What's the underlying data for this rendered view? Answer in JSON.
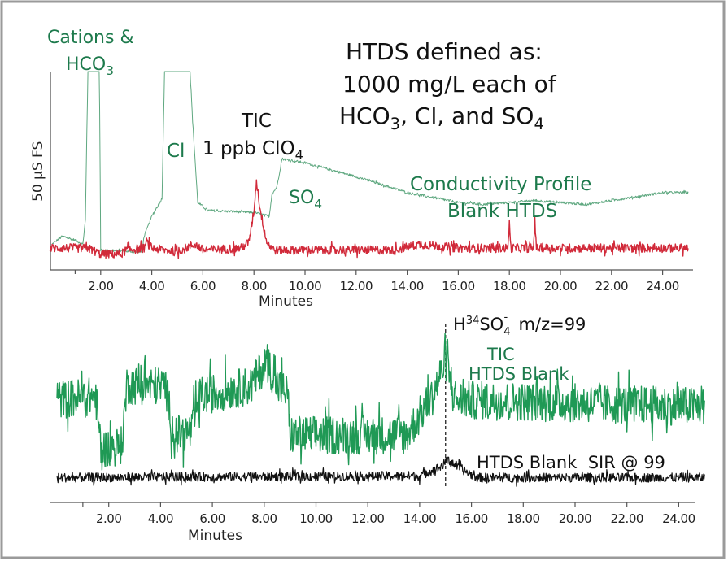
{
  "chart_data": [
    {
      "type": "line",
      "ylabel": "50 µS FS",
      "xlabel": "Minutes",
      "xlim": [
        0,
        25
      ],
      "ylim": [
        0,
        100
      ],
      "xticks": [
        "2.00",
        "4.00",
        "6.00",
        "8.00",
        "10.00",
        "12.00",
        "14.00",
        "16.00",
        "18.00",
        "20.00",
        "22.00",
        "24.00"
      ],
      "annotations": {
        "cations_line1": "Cations &",
        "cations_line2": "HCO",
        "cations_sub": "3",
        "htds_line1": "HTDS defined as:",
        "htds_line2": "1000 mg/L each of",
        "htds_line3a": "HCO",
        "htds_line3b": "3",
        "htds_line3c": ", Cl, and SO",
        "htds_line3d": "4",
        "tic": "TIC",
        "clo4_a": "1 ppb ClO",
        "clo4_b": "4",
        "cl": "Cl",
        "so4_a": "SO",
        "so4_b": "4",
        "profile_line1": "Conductivity Profile",
        "profile_line2": "Blank HTDS"
      },
      "series": [
        {
          "id": "conductivity",
          "color": "#5fa880",
          "noise": 0.6,
          "points": [
            [
              0.1,
              13
            ],
            [
              0.5,
              17
            ],
            [
              1.0,
              15
            ],
            [
              1.3,
              13
            ],
            [
              1.4,
              25
            ],
            [
              1.5,
              100
            ],
            [
              1.95,
              100
            ],
            [
              2.0,
              10
            ],
            [
              3.6,
              9
            ],
            [
              3.7,
              17
            ],
            [
              4.0,
              27
            ],
            [
              4.4,
              36
            ],
            [
              4.5,
              100
            ],
            [
              5.5,
              100
            ],
            [
              5.6,
              75
            ],
            [
              5.8,
              34
            ],
            [
              6.2,
              30
            ],
            [
              8.0,
              29
            ],
            [
              8.6,
              27
            ],
            [
              8.7,
              38
            ],
            [
              8.9,
              42
            ],
            [
              9.1,
              56
            ],
            [
              10,
              54
            ],
            [
              12,
              47
            ],
            [
              14,
              39
            ],
            [
              16,
              34
            ],
            [
              17,
              33
            ],
            [
              18,
              34
            ],
            [
              19,
              35
            ],
            [
              20,
              34
            ],
            [
              21,
              33
            ],
            [
              22,
              35
            ],
            [
              23,
              37
            ],
            [
              24,
              39
            ],
            [
              25,
              39
            ]
          ]
        },
        {
          "id": "tic-clo4",
          "color": "#d12a3a",
          "noise": 2.2,
          "points": [
            [
              0,
              11
            ],
            [
              1.5,
              11
            ],
            [
              2.0,
              8
            ],
            [
              2.8,
              8
            ],
            [
              3.0,
              10
            ],
            [
              3.7,
              11
            ],
            [
              3.8,
              14
            ],
            [
              4.0,
              11
            ],
            [
              5.0,
              9
            ],
            [
              5.5,
              12
            ],
            [
              5.7,
              13
            ],
            [
              6.0,
              10
            ],
            [
              7.5,
              11
            ],
            [
              7.8,
              14
            ],
            [
              8.0,
              30
            ],
            [
              8.1,
              45
            ],
            [
              8.25,
              30
            ],
            [
              8.5,
              14
            ],
            [
              8.8,
              10
            ],
            [
              13.5,
              10
            ],
            [
              14.5,
              13
            ],
            [
              15.2,
              12
            ],
            [
              16,
              11
            ],
            [
              17.95,
              11
            ],
            [
              18.0,
              25
            ],
            [
              18.05,
              11
            ],
            [
              18.95,
              11
            ],
            [
              19.0,
              27
            ],
            [
              19.05,
              11
            ],
            [
              25,
              11
            ]
          ]
        }
      ]
    },
    {
      "type": "line",
      "xlabel": "Minutes",
      "xlim": [
        0,
        25
      ],
      "ylim": [
        0,
        100
      ],
      "xticks": [
        "2.00",
        "4.00",
        "6.00",
        "8.00",
        "10.00",
        "12.00",
        "14.00",
        "16.00",
        "18.00",
        "20.00",
        "22.00",
        "24.00"
      ],
      "marker_line_x": 15.0,
      "annotations": {
        "ion_a": "H",
        "ion_sup": "34",
        "ion_b": "SO",
        "ion_sub": "4",
        "ion_charge": "-",
        "ion_c": "  m/z=99",
        "tic": "TIC",
        "tic_blank": "HTDS Blank",
        "sir": "HTDS Blank  SIR @ 99"
      },
      "series": [
        {
          "id": "tic-blank",
          "color": "#1f9955",
          "noise": 11,
          "points": [
            [
              0,
              58
            ],
            [
              1.5,
              60
            ],
            [
              1.7,
              30
            ],
            [
              2.5,
              32
            ],
            [
              2.7,
              66
            ],
            [
              4.2,
              66
            ],
            [
              4.5,
              38
            ],
            [
              5.2,
              40
            ],
            [
              5.5,
              60
            ],
            [
              7.5,
              66
            ],
            [
              8.1,
              80
            ],
            [
              8.5,
              66
            ],
            [
              8.9,
              62
            ],
            [
              9.0,
              38
            ],
            [
              13.5,
              38
            ],
            [
              14.5,
              60
            ],
            [
              15.0,
              80
            ],
            [
              15.4,
              58
            ],
            [
              25,
              54
            ]
          ]
        },
        {
          "id": "sir-99",
          "color": "#111111",
          "noise": 2.6,
          "points": [
            [
              0,
              14
            ],
            [
              14.0,
              15
            ],
            [
              14.8,
              20
            ],
            [
              15.1,
              24
            ],
            [
              15.6,
              19
            ],
            [
              16.2,
              14
            ],
            [
              25,
              14
            ]
          ]
        }
      ]
    }
  ]
}
